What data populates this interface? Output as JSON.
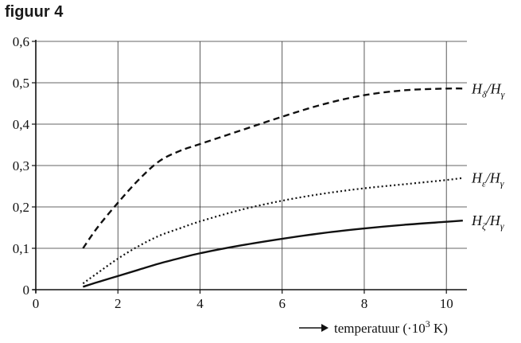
{
  "figure": {
    "title": "figuur 4"
  },
  "chart_data": {
    "type": "line",
    "xlabel": "temperatuur (·10³ K)",
    "xlabel_parts": {
      "main": "temperatuur (·10",
      "sup": "3",
      "tail": " K)"
    },
    "ylabel": "",
    "xlim": [
      0,
      10.5
    ],
    "ylim": [
      0,
      0.6
    ],
    "x_ticks": [
      0,
      2,
      4,
      6,
      8,
      10
    ],
    "x_tick_labels": [
      "0",
      "2",
      "4",
      "6",
      "8",
      "10"
    ],
    "y_ticks": [
      0,
      0.1,
      0.2,
      0.3,
      0.4,
      0.5,
      0.6
    ],
    "y_tick_labels": [
      "0",
      "0,1",
      "0,2",
      "0,3",
      "0,4",
      "0,5",
      "0,6"
    ],
    "grid": true,
    "series": [
      {
        "label_main": "H",
        "label_sub1": "δ",
        "label_mid": "/H",
        "label_sub2": "γ",
        "style": "dashed",
        "x": [
          1.15,
          1.5,
          2,
          2.5,
          3,
          3.5,
          4,
          5,
          6,
          7,
          8,
          9,
          10,
          10.4
        ],
        "y": [
          0.1,
          0.15,
          0.21,
          0.265,
          0.31,
          0.335,
          0.352,
          0.385,
          0.418,
          0.448,
          0.47,
          0.482,
          0.486,
          0.486
        ]
      },
      {
        "label_main": "H",
        "label_sub1": "ε",
        "label_mid": "/H",
        "label_sub2": "γ",
        "style": "dotted",
        "x": [
          1.15,
          1.5,
          2,
          2.5,
          3,
          3.5,
          4,
          5,
          6,
          7,
          8,
          9,
          10,
          10.4
        ],
        "y": [
          0.015,
          0.04,
          0.075,
          0.105,
          0.13,
          0.148,
          0.165,
          0.193,
          0.215,
          0.232,
          0.245,
          0.255,
          0.265,
          0.27
        ]
      },
      {
        "label_main": "H",
        "label_sub1": "ζ",
        "label_mid": "/H",
        "label_sub2": "γ",
        "style": "solid",
        "x": [
          1.15,
          1.5,
          2,
          2.5,
          3,
          3.5,
          4,
          5,
          6,
          7,
          8,
          9,
          10,
          10.4
        ],
        "y": [
          0.007,
          0.018,
          0.033,
          0.048,
          0.063,
          0.076,
          0.088,
          0.107,
          0.123,
          0.137,
          0.148,
          0.157,
          0.164,
          0.167
        ]
      }
    ]
  }
}
